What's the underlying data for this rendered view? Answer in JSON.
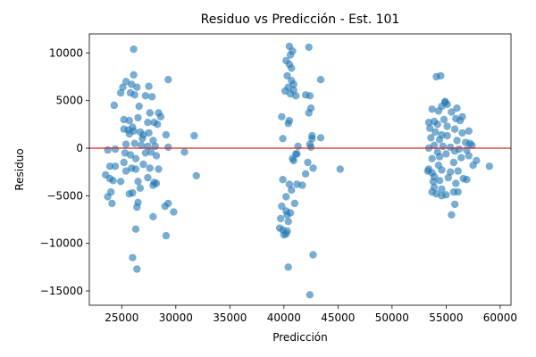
{
  "chart_data": {
    "type": "scatter",
    "title": "Residuo vs Predicción - Est. 101",
    "xlabel": "Predicción",
    "ylabel": "Residuo",
    "xlim": [
      22000,
      61000
    ],
    "ylim": [
      -16500,
      12000
    ],
    "x_ticks": [
      25000,
      30000,
      35000,
      40000,
      45000,
      50000,
      55000,
      60000
    ],
    "x_tick_labels": [
      "25000",
      "30000",
      "35000",
      "40000",
      "45000",
      "50000",
      "55000",
      "60000"
    ],
    "y_ticks": [
      -15000,
      -10000,
      -5000,
      0,
      5000,
      10000
    ],
    "y_tick_labels": [
      "−15000",
      "−10000",
      "−5000",
      "0",
      "5000",
      "10000"
    ],
    "grid": false,
    "reference_line": {
      "y": 0,
      "color": "#d62728"
    },
    "point_color": "#1f77b4",
    "point_alpha": 0.6,
    "points": [
      [
        26100,
        10400
      ],
      [
        26100,
        7700
      ],
      [
        25400,
        7000
      ],
      [
        25900,
        6700
      ],
      [
        26400,
        6400
      ],
      [
        27500,
        6500
      ],
      [
        25100,
        6400
      ],
      [
        25800,
        5800
      ],
      [
        24900,
        5800
      ],
      [
        26200,
        5600
      ],
      [
        27200,
        5500
      ],
      [
        27800,
        5400
      ],
      [
        29300,
        7200
      ],
      [
        24300,
        4500
      ],
      [
        26600,
        4400
      ],
      [
        27600,
        3700
      ],
      [
        28400,
        3700
      ],
      [
        28600,
        3300
      ],
      [
        26500,
        3200
      ],
      [
        25200,
        3000
      ],
      [
        25700,
        2900
      ],
      [
        27400,
        2700
      ],
      [
        28000,
        2700
      ],
      [
        28300,
        2500
      ],
      [
        26000,
        2200
      ],
      [
        25200,
        2000
      ],
      [
        25600,
        1900
      ],
      [
        26100,
        1800
      ],
      [
        26700,
        1700
      ],
      [
        27500,
        1600
      ],
      [
        27000,
        1400
      ],
      [
        29100,
        1400
      ],
      [
        31700,
        1300
      ],
      [
        26900,
        1000
      ],
      [
        27900,
        800
      ],
      [
        26200,
        500
      ],
      [
        25400,
        400
      ],
      [
        26800,
        300
      ],
      [
        27400,
        200
      ],
      [
        28100,
        200
      ],
      [
        29300,
        100
      ],
      [
        23700,
        -200
      ],
      [
        24400,
        -100
      ],
      [
        25300,
        -500
      ],
      [
        25800,
        -700
      ],
      [
        27200,
        -500
      ],
      [
        27700,
        -400
      ],
      [
        28200,
        -800
      ],
      [
        30800,
        -400
      ],
      [
        26300,
        -1100
      ],
      [
        25200,
        -1500
      ],
      [
        24400,
        -1900
      ],
      [
        23900,
        -1900
      ],
      [
        25900,
        -2100
      ],
      [
        26300,
        -2200
      ],
      [
        27000,
        -1700
      ],
      [
        27600,
        -2100
      ],
      [
        28400,
        -2200
      ],
      [
        25400,
        -2400
      ],
      [
        23500,
        -2800
      ],
      [
        23900,
        -3200
      ],
      [
        24200,
        -3400
      ],
      [
        26500,
        -3500
      ],
      [
        27400,
        -3100
      ],
      [
        28000,
        -3600
      ],
      [
        28200,
        -3700
      ],
      [
        27900,
        -3900
      ],
      [
        31900,
        -2900
      ],
      [
        24900,
        -3500
      ],
      [
        26700,
        -4200
      ],
      [
        26000,
        -4700
      ],
      [
        25700,
        -4800
      ],
      [
        24000,
        -4600
      ],
      [
        23700,
        -5100
      ],
      [
        24100,
        -5800
      ],
      [
        26500,
        -5700
      ],
      [
        26400,
        -6200
      ],
      [
        29300,
        -5800
      ],
      [
        29800,
        -6700
      ],
      [
        29000,
        -6100
      ],
      [
        27900,
        -7200
      ],
      [
        26300,
        -8500
      ],
      [
        29100,
        -9200
      ],
      [
        26000,
        -11500
      ],
      [
        26400,
        -12700
      ],
      [
        25700,
        1500
      ],
      [
        40500,
        10700
      ],
      [
        40800,
        10200
      ],
      [
        40600,
        9800
      ],
      [
        40200,
        9200
      ],
      [
        40500,
        8800
      ],
      [
        40700,
        8400
      ],
      [
        40300,
        7600
      ],
      [
        40700,
        7100
      ],
      [
        40900,
        6700
      ],
      [
        40400,
        6400
      ],
      [
        40900,
        6100
      ],
      [
        40100,
        6000
      ],
      [
        40600,
        5700
      ],
      [
        41100,
        5500
      ],
      [
        42300,
        10600
      ],
      [
        42400,
        5500
      ],
      [
        43400,
        7200
      ],
      [
        39800,
        3300
      ],
      [
        40500,
        2900
      ],
      [
        42500,
        4200
      ],
      [
        42300,
        3700
      ],
      [
        40400,
        2600
      ],
      [
        39900,
        1000
      ],
      [
        41300,
        200
      ],
      [
        42600,
        1300
      ],
      [
        42600,
        1000
      ],
      [
        42400,
        400
      ],
      [
        43400,
        1100
      ],
      [
        42500,
        100
      ],
      [
        41200,
        -600
      ],
      [
        41100,
        -600
      ],
      [
        42200,
        -1500
      ],
      [
        45200,
        -2200
      ],
      [
        40800,
        -1100
      ],
      [
        40900,
        -1300
      ],
      [
        42700,
        -2100
      ],
      [
        42000,
        -2700
      ],
      [
        41700,
        -3900
      ],
      [
        41200,
        -3800
      ],
      [
        39900,
        -3300
      ],
      [
        40500,
        -3800
      ],
      [
        40700,
        -4400
      ],
      [
        40200,
        -5100
      ],
      [
        39800,
        -6100
      ],
      [
        41000,
        -5800
      ],
      [
        40200,
        -6600
      ],
      [
        40600,
        -6800
      ],
      [
        40300,
        -7000
      ],
      [
        39700,
        -7400
      ],
      [
        40400,
        -7700
      ],
      [
        39600,
        -8400
      ],
      [
        39900,
        -8600
      ],
      [
        40300,
        -8700
      ],
      [
        40000,
        -9100
      ],
      [
        40200,
        -9000
      ],
      [
        40400,
        -12500
      ],
      [
        42700,
        -11200
      ],
      [
        42400,
        -15400
      ],
      [
        42000,
        5600
      ],
      [
        54500,
        7600
      ],
      [
        54100,
        7500
      ],
      [
        54900,
        4800
      ],
      [
        55100,
        4600
      ],
      [
        54600,
        4400
      ],
      [
        53700,
        4100
      ],
      [
        54300,
        3900
      ],
      [
        55500,
        3800
      ],
      [
        56000,
        4200
      ],
      [
        56500,
        3300
      ],
      [
        55900,
        3100
      ],
      [
        56300,
        2900
      ],
      [
        54800,
        3000
      ],
      [
        53900,
        2800
      ],
      [
        53400,
        2700
      ],
      [
        54200,
        2500
      ],
      [
        55100,
        2300
      ],
      [
        53500,
        2100
      ],
      [
        55800,
        2000
      ],
      [
        56500,
        1600
      ],
      [
        57100,
        1800
      ],
      [
        54000,
        1700
      ],
      [
        54600,
        1400
      ],
      [
        55100,
        1300
      ],
      [
        53600,
        1100
      ],
      [
        54400,
        900
      ],
      [
        56000,
        800
      ],
      [
        56800,
        600
      ],
      [
        57200,
        500
      ],
      [
        57400,
        300
      ],
      [
        53900,
        300
      ],
      [
        54700,
        200
      ],
      [
        55400,
        100
      ],
      [
        53400,
        0
      ],
      [
        56200,
        -100
      ],
      [
        55800,
        -300
      ],
      [
        56900,
        -200
      ],
      [
        54200,
        -400
      ],
      [
        55000,
        -600
      ],
      [
        54400,
        -900
      ],
      [
        53700,
        -1100
      ],
      [
        56400,
        -1000
      ],
      [
        57100,
        -800
      ],
      [
        57800,
        -1300
      ],
      [
        59000,
        -1900
      ],
      [
        57500,
        -1800
      ],
      [
        55700,
        -1500
      ],
      [
        54300,
        -1800
      ],
      [
        53400,
        -2200
      ],
      [
        56100,
        -2400
      ],
      [
        55400,
        -2500
      ],
      [
        54600,
        -2300
      ],
      [
        53700,
        -2600
      ],
      [
        53900,
        -3000
      ],
      [
        55200,
        -3100
      ],
      [
        56600,
        -3200
      ],
      [
        56900,
        -3300
      ],
      [
        54400,
        -3400
      ],
      [
        53800,
        -3500
      ],
      [
        55900,
        -3700
      ],
      [
        53900,
        -4100
      ],
      [
        54600,
        -4300
      ],
      [
        55700,
        -4600
      ],
      [
        54100,
        -4800
      ],
      [
        55000,
        -4900
      ],
      [
        56100,
        -4600
      ],
      [
        54600,
        -5000
      ],
      [
        55800,
        -5900
      ],
      [
        55500,
        -7000
      ],
      [
        53700,
        -4600
      ],
      [
        53300,
        -2400
      ],
      [
        54900,
        4900
      ]
    ]
  }
}
